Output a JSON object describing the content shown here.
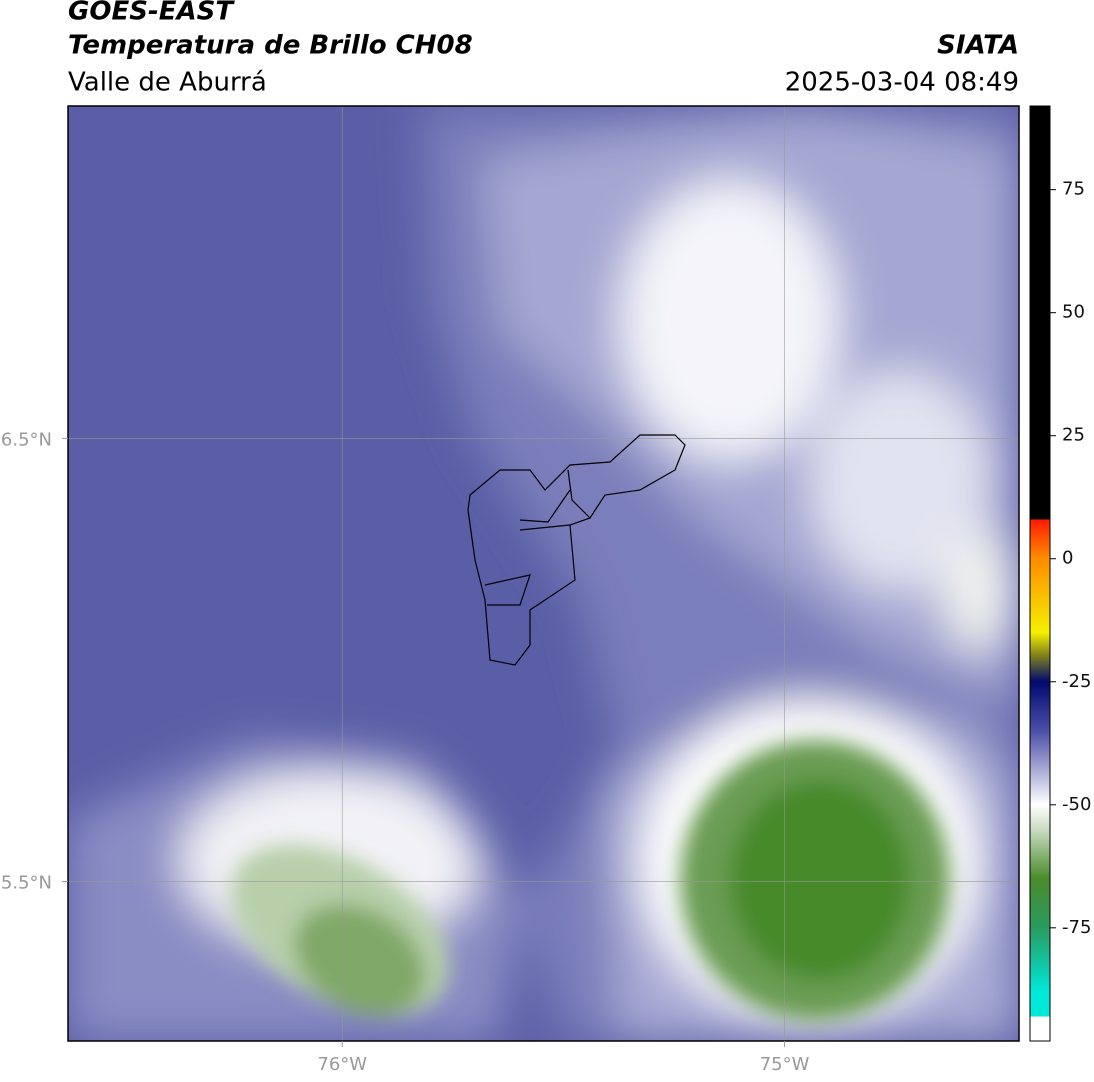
{
  "header": {
    "title": "GOES-EAST",
    "subtitle": "Temperatura de Brillo CH08",
    "region": "Valle de Aburrá",
    "source": "SIATA",
    "timestamp": "2025-03-04 08:49"
  },
  "map": {
    "xlim": [
      -76.62,
      -74.47
    ],
    "ylim": [
      5.14,
      7.25
    ],
    "xticks": [
      {
        "value": -76,
        "label": "76°W"
      },
      {
        "value": -75,
        "label": "75°W"
      }
    ],
    "yticks": [
      {
        "value": 6.5,
        "label": "6.5°N"
      },
      {
        "value": 5.5,
        "label": "5.5°N"
      }
    ],
    "grid": true
  },
  "colorbar": {
    "lim": [
      -98,
      92
    ],
    "ticks": [
      75,
      50,
      25,
      0,
      -25,
      -50,
      -75
    ]
  }
}
